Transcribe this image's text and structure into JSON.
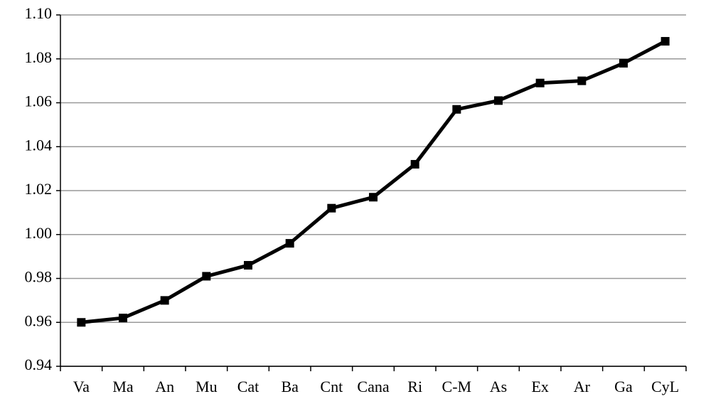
{
  "chart_data": {
    "type": "line",
    "categories": [
      "Va",
      "Ma",
      "An",
      "Mu",
      "Cat",
      "Ba",
      "Cnt",
      "Cana",
      "Ri",
      "C-M",
      "As",
      "Ex",
      "Ar",
      "Ga",
      "CyL"
    ],
    "series": [
      {
        "color": "#000000",
        "values": [
          0.96,
          0.962,
          0.97,
          0.981,
          0.986,
          0.996,
          1.012,
          1.017,
          1.032,
          1.057,
          1.061,
          1.069,
          1.07,
          1.078,
          1.088
        ]
      }
    ],
    "ylim": [
      0.94,
      1.1
    ],
    "yticks": [
      0.94,
      0.96,
      0.98,
      {
        "value": 1.0,
        "label": "1.00"
      },
      1.02,
      1.04,
      1.06,
      1.08,
      {
        "value": 1.1,
        "label": "1.10"
      }
    ],
    "grid": true
  }
}
